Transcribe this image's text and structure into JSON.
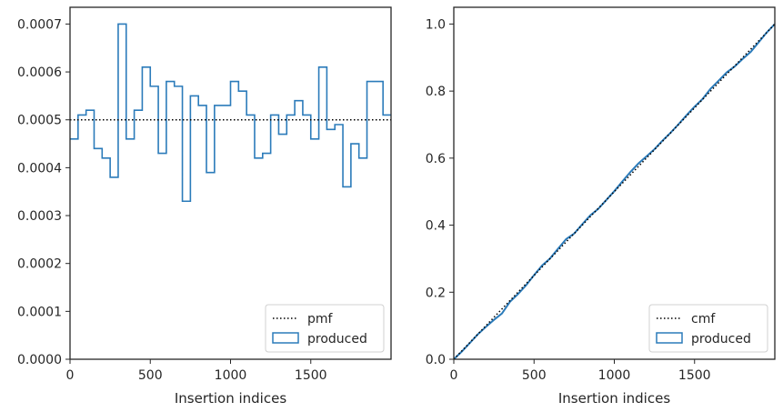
{
  "chart_data": [
    {
      "type": "line",
      "subtype": "step-histogram",
      "xlabel": "Insertion indices",
      "ylabel": "",
      "xlim": [
        0,
        2000
      ],
      "ylim": [
        0,
        0.000735
      ],
      "xticks": [
        0,
        500,
        1000,
        1500
      ],
      "xtick_labels": [
        "0",
        "500",
        "1000",
        "1500"
      ],
      "yticks": [
        0,
        0.0001,
        0.0002,
        0.0003,
        0.0004,
        0.0005,
        0.0006,
        0.0007
      ],
      "ytick_labels": [
        "0.0000",
        "0.0001",
        "0.0002",
        "0.0003",
        "0.0004",
        "0.0005",
        "0.0006",
        "0.0007"
      ],
      "grid": false,
      "legend_position": "lower-right",
      "series": [
        {
          "name": "pmf",
          "style": "dotted",
          "color": "#000000",
          "x": [
            0,
            2000
          ],
          "y": [
            0.0005,
            0.0005
          ]
        },
        {
          "name": "produced",
          "style": "step",
          "color": "#2b7bba",
          "bin_edges": [
            0,
            50,
            100,
            150,
            200,
            250,
            300,
            350,
            400,
            450,
            500,
            550,
            600,
            650,
            700,
            750,
            800,
            850,
            900,
            950,
            1000,
            1050,
            1100,
            1150,
            1200,
            1250,
            1300,
            1350,
            1400,
            1450,
            1500,
            1550,
            1600,
            1650,
            1700,
            1750,
            1800,
            1850,
            1900,
            1950,
            2000
          ],
          "values": [
            0.00046,
            0.00051,
            0.00052,
            0.00044,
            0.00042,
            0.00038,
            0.0007,
            0.00046,
            0.00052,
            0.00061,
            0.00057,
            0.00043,
            0.00058,
            0.00057,
            0.00033,
            0.00055,
            0.00053,
            0.00039,
            0.00053,
            0.00053,
            0.00058,
            0.00056,
            0.00051,
            0.00042,
            0.00043,
            0.00051,
            0.00047,
            0.00051,
            0.00054,
            0.00051,
            0.00046,
            0.00061,
            0.00048,
            0.00049,
            0.00036,
            0.00045,
            0.00042,
            0.00058,
            0.00058,
            0.00051
          ]
        }
      ]
    },
    {
      "type": "line",
      "subtype": "step-cumulative",
      "xlabel": "Insertion indices",
      "ylabel": "",
      "xlim": [
        0,
        2000
      ],
      "ylim": [
        0,
        1.05
      ],
      "xticks": [
        0,
        500,
        1000,
        1500
      ],
      "xtick_labels": [
        "0",
        "500",
        "1000",
        "1500"
      ],
      "yticks": [
        0,
        0.2,
        0.4,
        0.6,
        0.8,
        1.0
      ],
      "ytick_labels": [
        "0.0",
        "0.2",
        "0.4",
        "0.6",
        "0.8",
        "1.0"
      ],
      "grid": false,
      "legend_position": "lower-right",
      "series": [
        {
          "name": "cmf",
          "style": "dotted",
          "color": "#000000",
          "x": [
            0,
            2000
          ],
          "y": [
            0,
            1.0
          ]
        },
        {
          "name": "produced",
          "style": "step",
          "color": "#2b7bba",
          "x": [
            0,
            50,
            100,
            150,
            200,
            250,
            300,
            350,
            400,
            450,
            500,
            550,
            600,
            650,
            700,
            750,
            800,
            850,
            900,
            950,
            1000,
            1050,
            1100,
            1150,
            1200,
            1250,
            1300,
            1350,
            1400,
            1450,
            1500,
            1550,
            1600,
            1650,
            1700,
            1750,
            1800,
            1850,
            1900,
            1950,
            2000
          ],
          "y": [
            0,
            0.023,
            0.0485,
            0.0745,
            0.0965,
            0.1175,
            0.1365,
            0.1715,
            0.1945,
            0.2205,
            0.251,
            0.2795,
            0.301,
            0.33,
            0.3585,
            0.375,
            0.4025,
            0.429,
            0.4485,
            0.475,
            0.5015,
            0.5305,
            0.5585,
            0.584,
            0.605,
            0.6265,
            0.652,
            0.6755,
            0.701,
            0.728,
            0.7535,
            0.7765,
            0.807,
            0.831,
            0.8555,
            0.8735,
            0.896,
            0.917,
            0.946,
            0.975,
            1.0
          ]
        }
      ]
    }
  ],
  "colors": {
    "produced": "#2b7bba",
    "reference": "#000000",
    "axes": "#262626"
  }
}
